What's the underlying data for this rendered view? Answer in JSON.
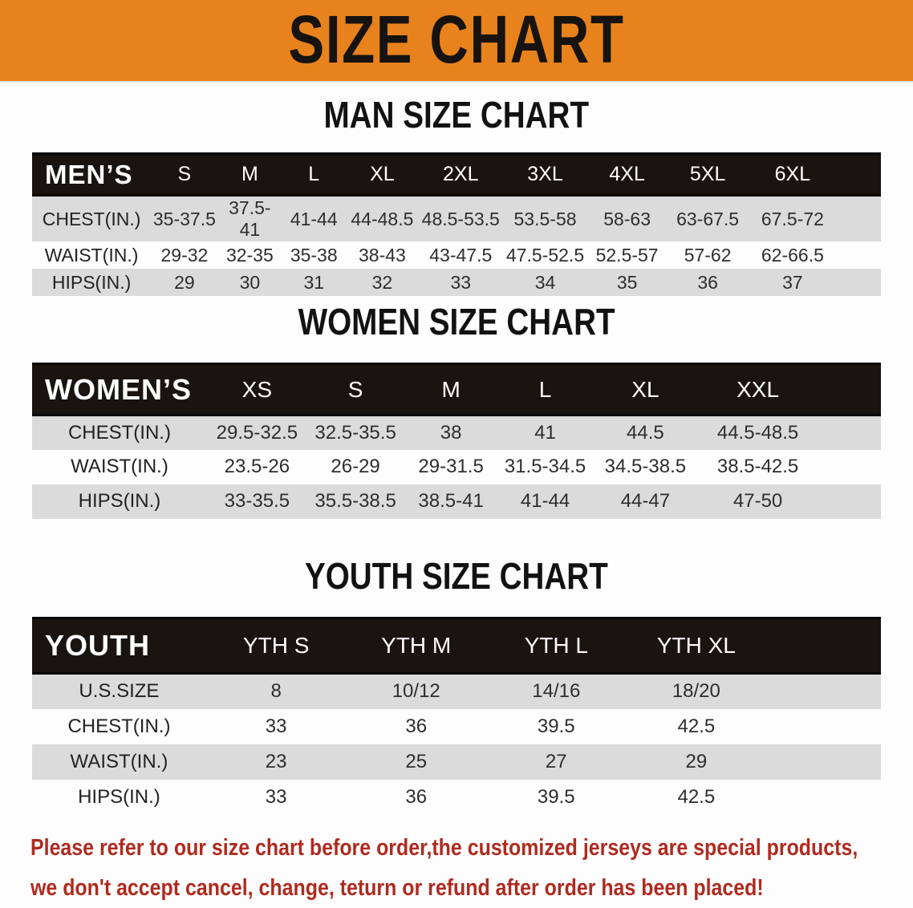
{
  "banner": {
    "title": "SIZE CHART",
    "bg_color": "#E8821D"
  },
  "sections": [
    {
      "heading": "MAN SIZE CHART",
      "table": {
        "header_label": "MEN’S",
        "columns": [
          "S",
          "M",
          "L",
          "XL",
          "2XL",
          "3XL",
          "4XL",
          "5XL",
          "6XL"
        ],
        "rows": [
          {
            "label": "CHEST(IN.)",
            "values": [
              "35-37.5",
              "37.5-41",
              "41-44",
              "44-48.5",
              "48.5-53.5",
              "53.5-58",
              "58-63",
              "63-67.5",
              "67.5-72"
            ]
          },
          {
            "label": "WAIST(IN.)",
            "values": [
              "29-32",
              "32-35",
              "35-38",
              "38-43",
              "43-47.5",
              "47.5-52.5",
              "52.5-57",
              "57-62",
              "62-66.5"
            ]
          },
          {
            "label": "HIPS(IN.)",
            "values": [
              "29",
              "30",
              "31",
              "32",
              "33",
              "34",
              "35",
              "36",
              "37"
            ]
          }
        ]
      }
    },
    {
      "heading": "WOMEN SIZE CHART",
      "table": {
        "header_label": "WOMEN’S",
        "columns": [
          "XS",
          "S",
          "M",
          "L",
          "XL",
          "XXL"
        ],
        "rows": [
          {
            "label": "CHEST(IN.)",
            "values": [
              "29.5-32.5",
              "32.5-35.5",
              "38",
              "41",
              "44.5",
              "44.5-48.5"
            ]
          },
          {
            "label": "WAIST(IN.)",
            "values": [
              "23.5-26",
              "26-29",
              "29-31.5",
              "31.5-34.5",
              "34.5-38.5",
              "38.5-42.5"
            ]
          },
          {
            "label": "HIPS(IN.)",
            "values": [
              "33-35.5",
              "35.5-38.5",
              "38.5-41",
              "41-44",
              "44-47",
              "47-50"
            ]
          }
        ]
      }
    },
    {
      "heading": "YOUTH SIZE CHART",
      "table": {
        "header_label": "YOUTH",
        "columns": [
          "YTH S",
          "YTH M",
          "YTH L",
          "YTH XL"
        ],
        "rows": [
          {
            "label": "U.S.SIZE",
            "values": [
              "8",
              "10/12",
              "14/16",
              "18/20"
            ]
          },
          {
            "label": "CHEST(IN.)",
            "values": [
              "33",
              "36",
              "39.5",
              "42.5"
            ]
          },
          {
            "label": "WAIST(IN.)",
            "values": [
              "23",
              "25",
              "27",
              "29"
            ]
          },
          {
            "label": "HIPS(IN.)",
            "values": [
              "33",
              "36",
              "39.5",
              "42.5"
            ]
          }
        ]
      }
    }
  ],
  "footer": {
    "line1": "Please refer to our size chart before order,the customized jerseys are special products,",
    "line2": "we don't accept cancel, change, teturn or refund after order has been placed!",
    "text_color": "#AE2B20"
  }
}
